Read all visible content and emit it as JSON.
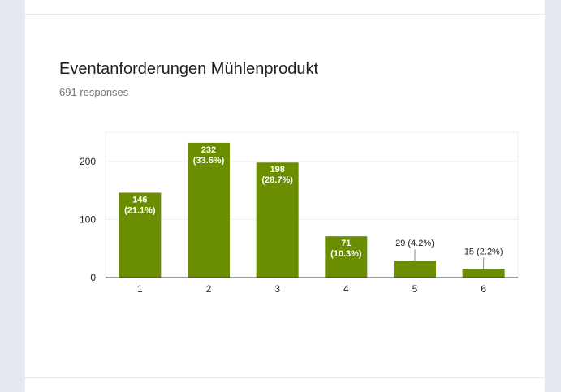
{
  "form": {
    "question_title": "Eventanforderungen Mühlenprodukt",
    "response_count": "691 responses"
  },
  "colors": {
    "bar": "#6a8e00",
    "page_background": "#e4e8ef",
    "card": "#ffffff"
  },
  "chart_data": {
    "type": "bar",
    "categories": [
      "1",
      "2",
      "3",
      "4",
      "5",
      "6"
    ],
    "values": [
      146,
      232,
      198,
      71,
      29,
      15
    ],
    "data_labels": [
      [
        "146",
        "(21.1%)"
      ],
      [
        "232",
        "(33.6%)"
      ],
      [
        "198",
        "(28.7%)"
      ],
      [
        "71",
        "(10.3%)"
      ],
      [
        "29 (4.2%)"
      ],
      [
        "15 (2.2%)"
      ]
    ],
    "yticks": [
      0,
      100,
      200
    ],
    "ylim": [
      0,
      250
    ],
    "grid": true,
    "legend": "none"
  }
}
